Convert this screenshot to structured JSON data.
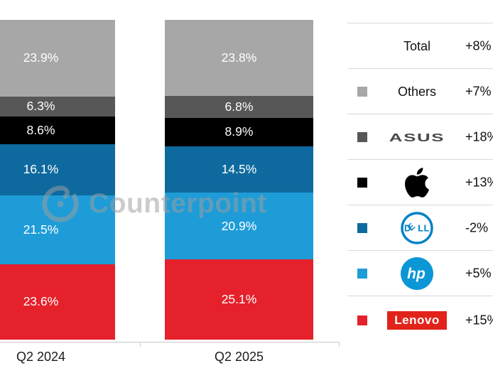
{
  "watermark": {
    "text": "Counterpoint"
  },
  "chart_data": {
    "type": "stacked-bar",
    "title": "",
    "categories": [
      "Q2 2024",
      "Q2 2025"
    ],
    "value_suffix": "%",
    "ylim": [
      0,
      100
    ],
    "grid": false,
    "legend_position": "right",
    "series": [
      {
        "name": "Lenovo",
        "color": "#e5212b",
        "values": [
          23.6,
          25.1
        ],
        "change": "+15%"
      },
      {
        "name": "HP",
        "color": "#1e9cd8",
        "values": [
          21.5,
          20.9
        ],
        "change": "+5%"
      },
      {
        "name": "Dell",
        "color": "#0e6a9e",
        "values": [
          16.1,
          14.5
        ],
        "change": "-2%"
      },
      {
        "name": "Apple",
        "color": "#000000",
        "values": [
          8.6,
          8.9
        ],
        "change": "+13%"
      },
      {
        "name": "ASUS",
        "color": "#575757",
        "values": [
          6.3,
          6.8
        ],
        "change": "+18%"
      },
      {
        "name": "Others",
        "color": "#a7a7a7",
        "values": [
          23.9,
          23.8
        ],
        "change": "+7%"
      }
    ],
    "total_change": "+8%"
  },
  "legend": {
    "rows": [
      {
        "label": "Total",
        "change": "+8%"
      },
      {
        "label": "Others",
        "change": "+7%",
        "color": "#a7a7a7"
      },
      {
        "label": "ASUS",
        "change": "+18%",
        "color": "#575757"
      },
      {
        "label": "Apple",
        "change": "+13%",
        "color": "#000000"
      },
      {
        "label": "Dell",
        "change": "-2%",
        "color": "#0e6a9e",
        "logo_chars": [
          "D",
          "E",
          "LL"
        ]
      },
      {
        "label": "HP",
        "change": "+5%",
        "color": "#1e9cd8",
        "logo_text": "hp"
      },
      {
        "label": "Lenovo",
        "change": "+15%",
        "color": "#e5212b"
      }
    ]
  },
  "brand_colors": {
    "dell_logo_blue": "#0082c6",
    "hp_logo_blue": "#0b96d6",
    "lenovo_badge_red": "#e2231a",
    "asus_wordmark_gray": "#494949",
    "separator_gray": "#d9d9d9"
  }
}
